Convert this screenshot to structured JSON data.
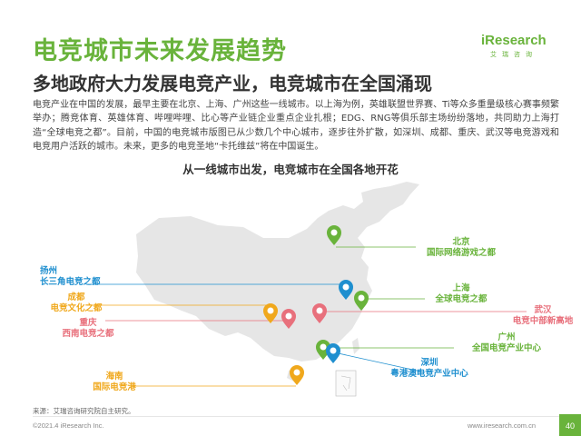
{
  "header": {
    "title": "电竞城市未来发展趋势",
    "subtitle": "多地政府大力发展电竞产业，电竞城市在全国涌现"
  },
  "logo": {
    "brand_i": "i",
    "brand_rest": "Research",
    "brand_cn": "艾瑞咨询"
  },
  "body_text": "电竞产业在中国的发展，最早主要在北京、上海、广州这些一线城市。以上海为例，英雄联盟世界赛、Ti等众多重量级核心赛事频繁举办；腾竞体育、英雄体育、哔哩哔哩、比心等产业链企业重点企业扎根；EDG、RNG等俱乐部主场纷纷落地，共同助力上海打造“全球电竞之都”。目前，中国的电竞城市版图已从少数几个中心城市，逐步往外扩散，如深圳、成都、重庆、武汉等电竞游戏和电竞用户活跃的城市。未来，更多的电竞圣地“卡托维兹”将在中国诞生。",
  "map": {
    "title": "从一线城市出发，电竞城市在全国各地开花",
    "cities": [
      {
        "city": "北京",
        "tagline": "国际网络游戏之都",
        "color": "#69b33b"
      },
      {
        "city": "上海",
        "tagline": "全球电竞之都",
        "color": "#69b33b"
      },
      {
        "city": "武汉",
        "tagline": "电竞中部新高地",
        "color": "#e8707c"
      },
      {
        "city": "广州",
        "tagline": "全国电竞产业中心",
        "color": "#69b33b"
      },
      {
        "city": "深圳",
        "tagline": "粤港澳电竞产业中心",
        "color": "#1f8fcf"
      },
      {
        "city": "扬州",
        "tagline": "长三角电竞之都",
        "color": "#1f8fcf"
      },
      {
        "city": "成都",
        "tagline": "电竞文化之都",
        "color": "#f0a81c"
      },
      {
        "city": "重庆",
        "tagline": "西南电竞之都",
        "color": "#e8707c"
      },
      {
        "city": "海南",
        "tagline": "国际电竞港",
        "color": "#f0a81c"
      }
    ]
  },
  "footer": {
    "source": "来源：艾瑞咨询研究院自主研究。",
    "copyright": "©2021.4 iResearch Inc.",
    "url": "www.iresearch.com.cn",
    "page": "40"
  }
}
